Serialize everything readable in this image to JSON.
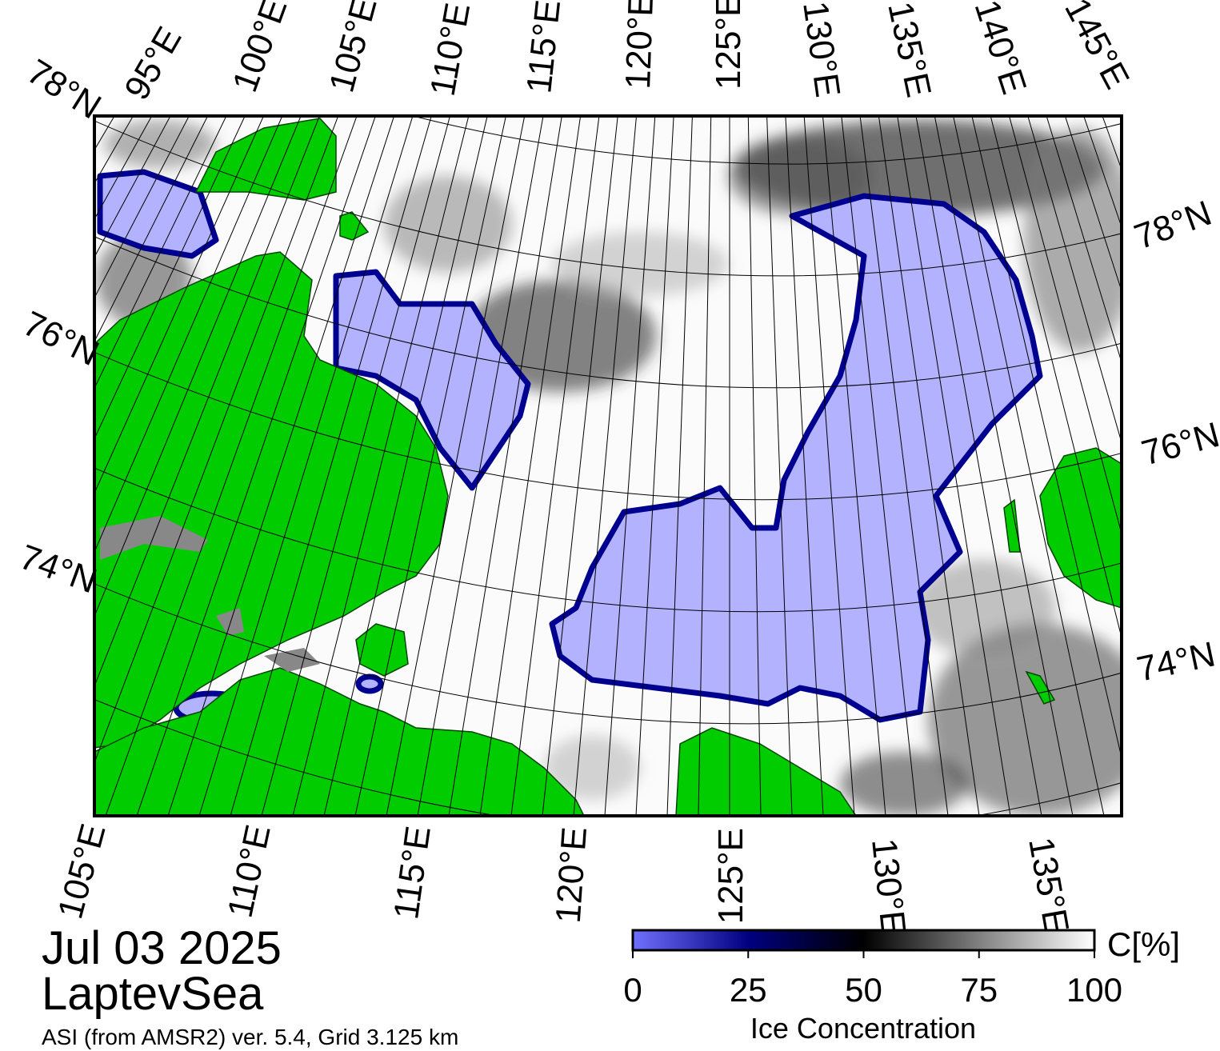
{
  "map": {
    "top_labels": [
      "95°E",
      "100°E",
      "105°E",
      "110°E",
      "115°E",
      "120°E",
      "125°E",
      "130°E",
      "135°E",
      "140°E",
      "145°E"
    ],
    "left_labels": [
      "78°N",
      "76°N",
      "74°N"
    ],
    "right_labels": [
      "78°N",
      "76°N",
      "74°N"
    ],
    "bottom_labels": [
      "105°E",
      "110°E",
      "115°E",
      "120°E",
      "125°E",
      "130°E",
      "135°E"
    ]
  },
  "date": "Jul 03 2025",
  "region": "LaptevSea",
  "source": "ASI (from AMSR2) ver. 5.4,  Grid 3.125 km",
  "colorbar": {
    "title": "Ice Concentration",
    "unit": "C[%]",
    "range": [
      0,
      100
    ],
    "ticks": [
      0,
      25,
      50,
      75,
      100
    ]
  }
}
